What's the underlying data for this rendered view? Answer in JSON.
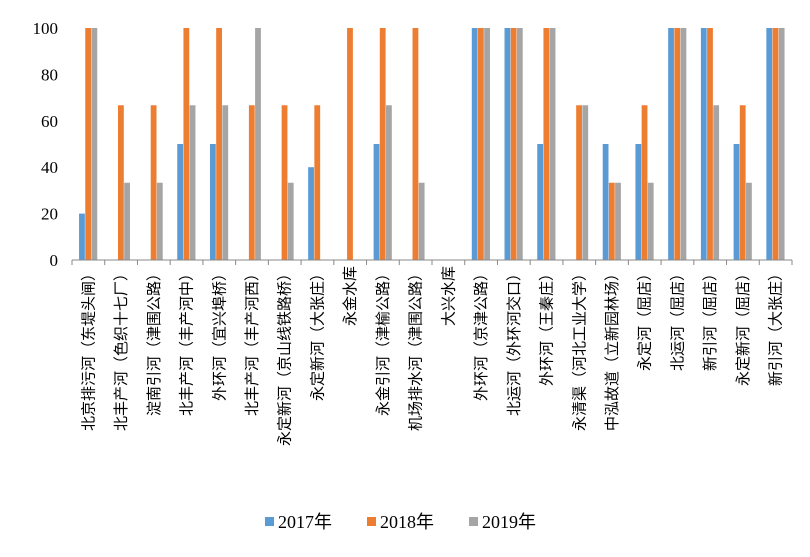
{
  "chart_data": {
    "type": "bar",
    "title": "",
    "xlabel": "",
    "ylabel": "",
    "ylim": [
      0,
      100
    ],
    "yticks": [
      0,
      20,
      40,
      60,
      80,
      100
    ],
    "grid": false,
    "legend_position": "bottom",
    "categories": [
      "北京排污河（东堤头闸）",
      "北丰产河（色织十七厂）",
      "淀南引河（津围公路）",
      "北丰产河（丰产河中）",
      "外环河（宜兴埠桥）",
      "北丰产河（丰产河西）",
      "永定新河（京山线铁路桥）",
      "永定新河（大张庄）",
      "永金水库",
      "永金引河（津榆公路）",
      "机场排水河（津围公路）",
      "大兴水库",
      "外环河（京津公路）",
      "北运河（外环河交口）",
      "外环河（王秦庄）",
      "永清渠（河北工业大学）",
      "中泓故道（立新园林场）",
      "永定河（屈店）",
      "北运河（屈店）",
      "新引河（屈店）",
      "永定新河（屈店）",
      "新引河（大张庄）"
    ],
    "series": [
      {
        "name": "2017年",
        "color": "#5b9bd5",
        "values": [
          20,
          0,
          0,
          50,
          50,
          0,
          0,
          40,
          0,
          50,
          0,
          0,
          100,
          100,
          50,
          0,
          50,
          50,
          100,
          100,
          50,
          100
        ]
      },
      {
        "name": "2018年",
        "color": "#ed7d31",
        "values": [
          100,
          66.7,
          66.7,
          100,
          100,
          66.7,
          66.7,
          66.7,
          100,
          100,
          100,
          0,
          100,
          100,
          100,
          66.7,
          33.3,
          66.7,
          100,
          100,
          66.7,
          100
        ]
      },
      {
        "name": "2019年",
        "color": "#a5a5a5",
        "values": [
          100,
          33.3,
          33.3,
          66.7,
          66.7,
          100,
          33.3,
          0,
          0,
          66.7,
          33.3,
          0,
          100,
          100,
          100,
          66.7,
          33.3,
          33.3,
          100,
          66.7,
          33.3,
          100
        ]
      }
    ]
  }
}
